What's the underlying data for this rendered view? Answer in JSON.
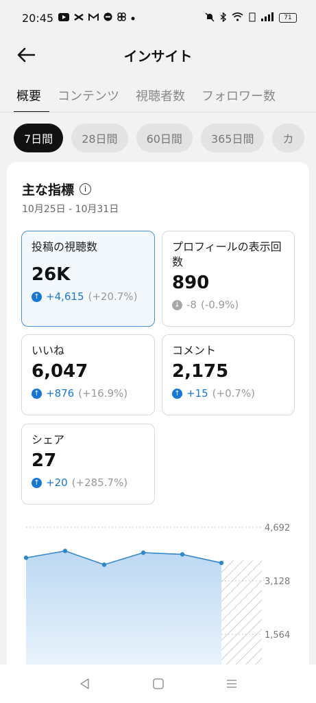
{
  "status_bar": {
    "time": "20:45",
    "battery": "71",
    "left_icons": [
      "youtube-icon",
      "capcut-icon",
      "gmail-icon",
      "app-icon",
      "clover-icon",
      "dot-icon"
    ],
    "right_icons": [
      "mute-icon",
      "bluetooth-icon",
      "wifi-icon",
      "volte-icon",
      "signal-icon",
      "battery-icon"
    ]
  },
  "header": {
    "title": "インサイト"
  },
  "tabs": [
    {
      "label": "概要",
      "active": true
    },
    {
      "label": "コンテンツ",
      "active": false
    },
    {
      "label": "視聴者数",
      "active": false
    },
    {
      "label": "フォロワー数",
      "active": false
    }
  ],
  "chips": [
    {
      "label": "7日間",
      "active": true
    },
    {
      "label": "28日間",
      "active": false
    },
    {
      "label": "60日間",
      "active": false
    },
    {
      "label": "365日間",
      "active": false
    },
    {
      "label": "カ",
      "active": false
    }
  ],
  "main": {
    "section_title": "主な指標",
    "date_range": "10月25日 - 10月31日",
    "metrics": [
      {
        "label": "投稿の視聴数",
        "value": "26K",
        "delta": "+4,615",
        "pct": "(+20.7%)",
        "direction": "up"
      },
      {
        "label": "プロフィールの表示回数",
        "value": "890",
        "delta": "-8",
        "pct": "(-0.9%)",
        "direction": "down"
      },
      {
        "label": "いいね",
        "value": "6,047",
        "delta": "+876",
        "pct": "(+16.9%)",
        "direction": "up"
      },
      {
        "label": "コメント",
        "value": "2,175",
        "delta": "+15",
        "pct": "(+0.7%)",
        "direction": "up"
      },
      {
        "label": "シェア",
        "value": "27",
        "delta": "+20",
        "pct": "(+285.7%)",
        "direction": "up"
      }
    ]
  },
  "chart_data": {
    "type": "area",
    "y_ticks": [
      "4,692",
      "3,128",
      "1,564"
    ],
    "ylim": [
      0,
      4692
    ],
    "values": [
      3800,
      4000,
      3600,
      3950,
      3900,
      3650
    ],
    "xlabel": "",
    "ylabel": "",
    "grid": true,
    "accent_color": "#2f86c8"
  },
  "colors": {
    "accent": "#1877d2",
    "negative": "#a8a8a8"
  }
}
